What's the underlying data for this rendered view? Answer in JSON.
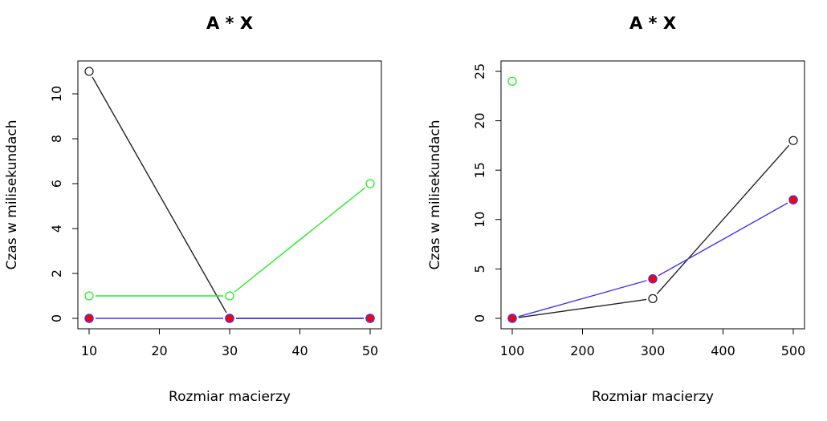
{
  "colors": {
    "black_series": "#222222",
    "green_series": "#22ee22",
    "blue_series": "#4433ee",
    "red_fill": "#ff0000"
  },
  "chart_data": [
    {
      "type": "line",
      "title": "A * X",
      "xlabel": "Rozmiar macierzy",
      "ylabel": "Czas w milisekundach",
      "xlim": [
        10,
        50
      ],
      "ylim": [
        0,
        11
      ],
      "xticks": [
        10,
        20,
        30,
        40,
        50
      ],
      "yticks": [
        0,
        2,
        4,
        6,
        8,
        10
      ],
      "x": [
        10,
        30,
        50
      ],
      "series": [
        {
          "color": "#222222",
          "marker": "open-circle",
          "values": [
            11,
            0,
            0
          ]
        },
        {
          "color": "#22ee22",
          "marker": "open-circle",
          "values": [
            1,
            1,
            6
          ]
        },
        {
          "color": "#4433ee",
          "marker": "open-circle",
          "values": [
            0,
            0,
            0
          ]
        },
        {
          "color": "#4433ee",
          "marker": "filled-red-circle",
          "values": [
            0,
            0,
            0
          ]
        }
      ]
    },
    {
      "type": "line",
      "title": "A * X",
      "xlabel": "Rozmiar macierzy",
      "ylabel": "Czas w milisekundach",
      "xlim": [
        100,
        500
      ],
      "ylim": [
        0,
        25
      ],
      "xticks": [
        100,
        200,
        300,
        400,
        500
      ],
      "yticks": [
        0,
        5,
        10,
        15,
        20,
        25
      ],
      "x": [
        100,
        300,
        500
      ],
      "series": [
        {
          "color": "#222222",
          "marker": "open-circle",
          "values": [
            0,
            2,
            18
          ]
        },
        {
          "color": "#22ee22",
          "marker": "open-circle",
          "values": [
            24,
            null,
            null
          ]
        },
        {
          "color": "#4433ee",
          "marker": "open-circle",
          "values": [
            0,
            4,
            12
          ]
        },
        {
          "color": "#4433ee",
          "marker": "filled-red-circle",
          "values": [
            0,
            4,
            12
          ]
        }
      ]
    }
  ]
}
